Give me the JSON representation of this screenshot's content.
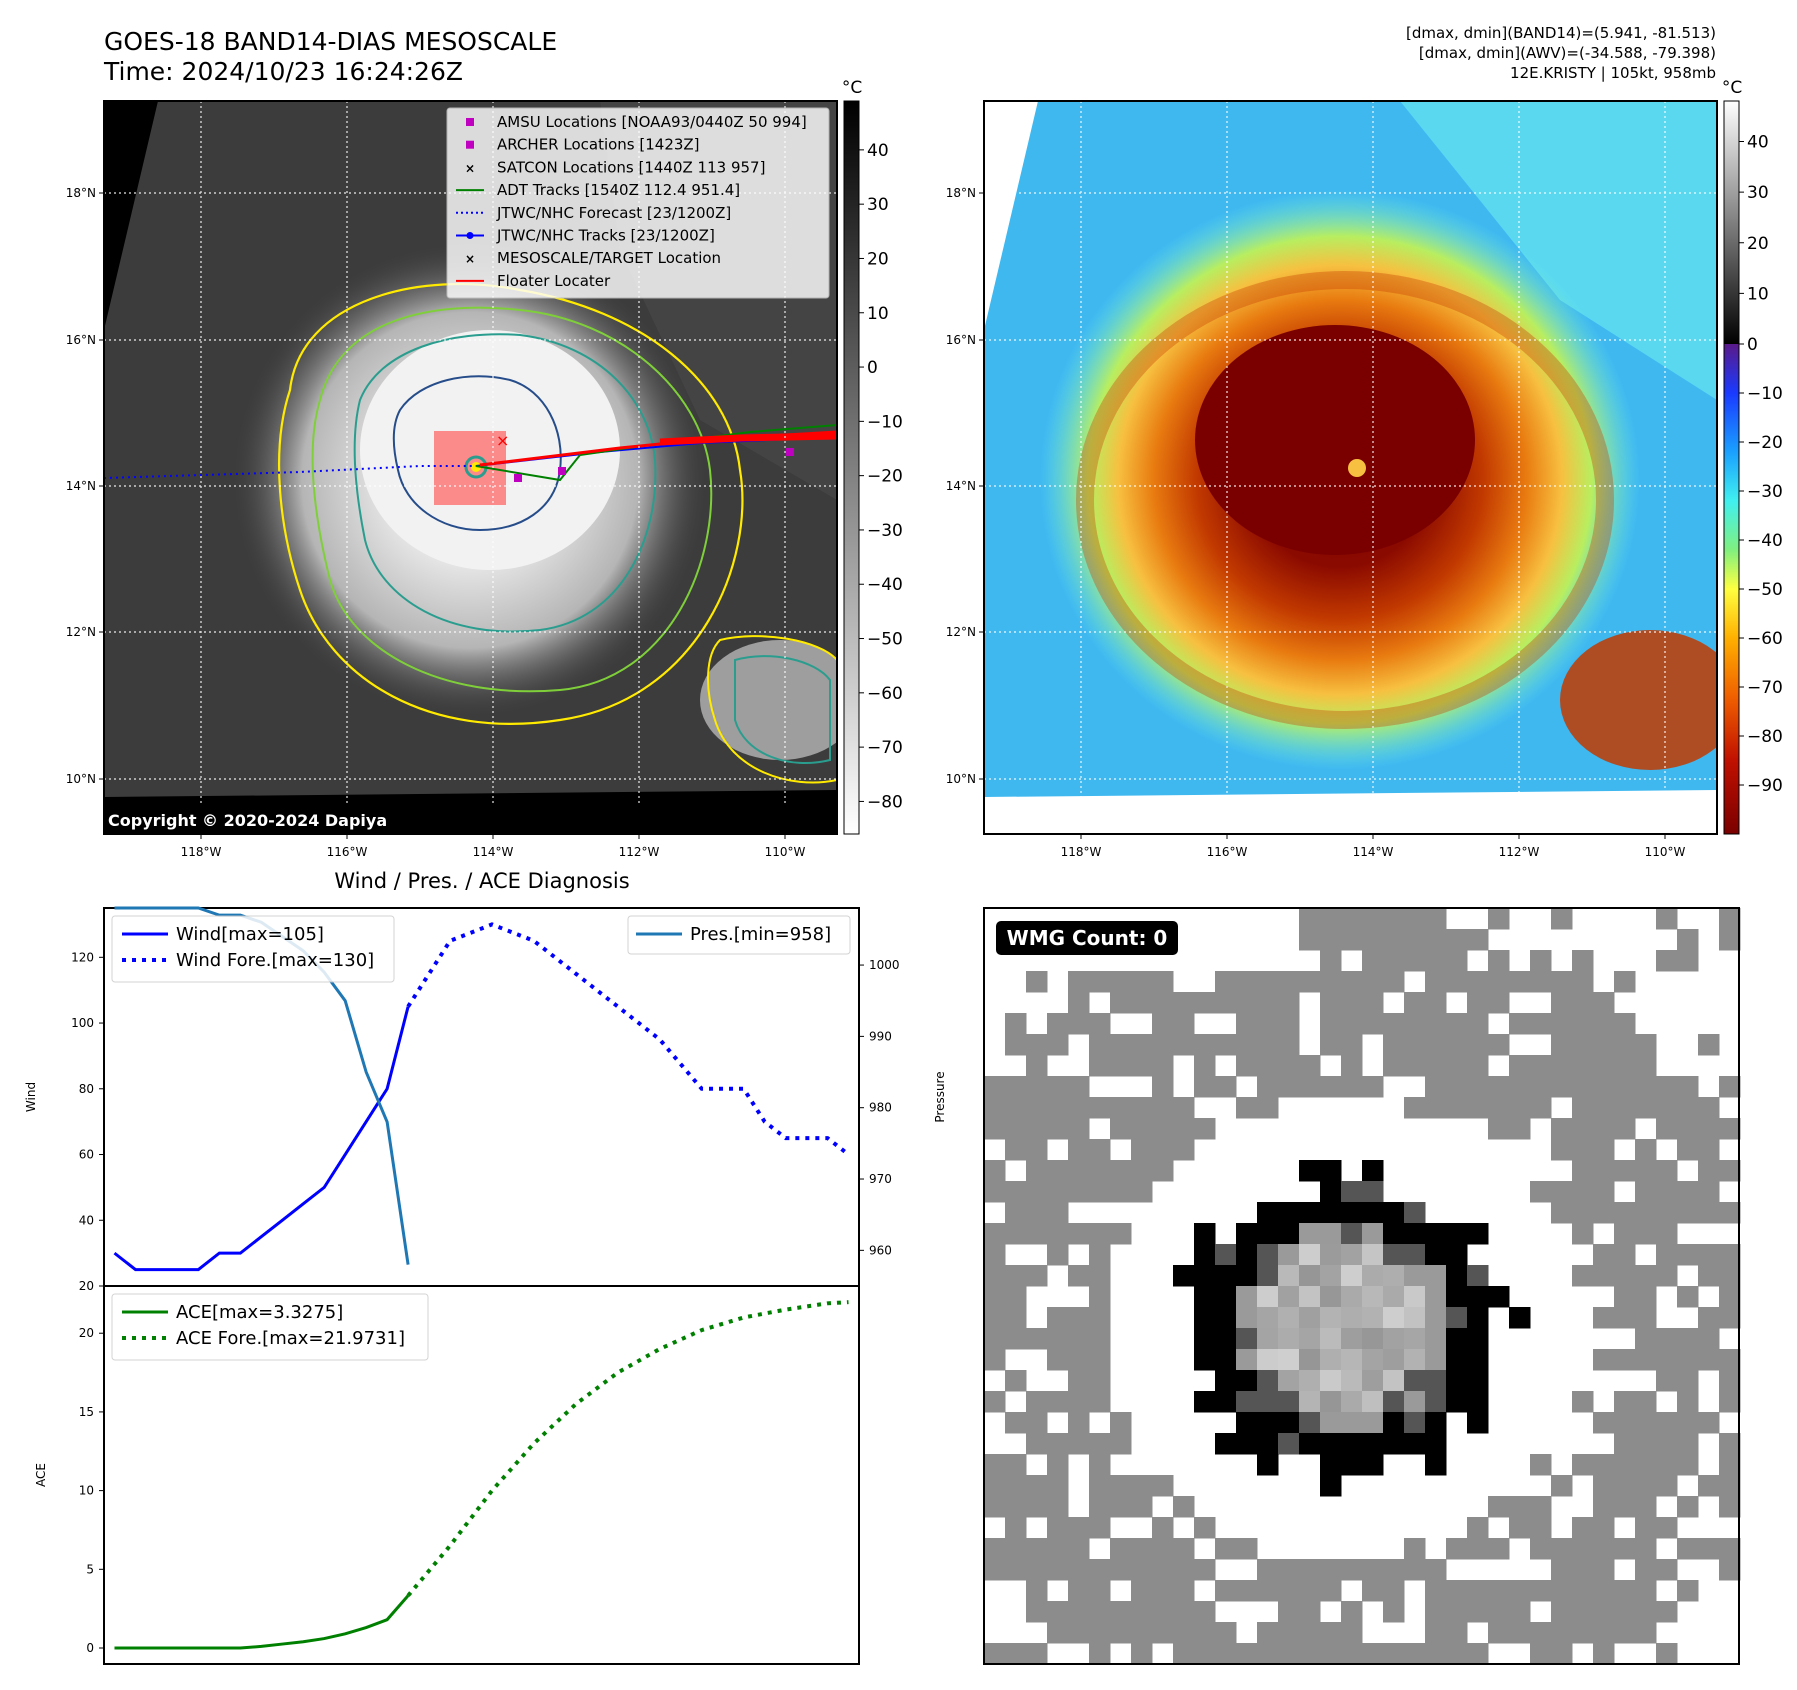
{
  "header": {
    "title_line1": "GOES-18 BAND14-DIAS MESOSCALE",
    "title_line2": "Time: 2024/10/23 16:24:26Z",
    "stats_line1": "[dmax, dmin](BAND14)=(5.941, -81.513)",
    "stats_line2": "[dmax, dmin](AWV)=(-34.588, -79.398)",
    "stats_line3": "12E.KRISTY | 105kt, 958mb"
  },
  "map": {
    "lon_labels": [
      "118°W",
      "116°W",
      "114°W",
      "112°W",
      "110°W"
    ],
    "lat_labels": [
      "18°N",
      "16°N",
      "14°N",
      "12°N",
      "10°N"
    ],
    "copyright": "Copyright © 2020-2024 Dapiya",
    "legend": [
      {
        "label": "AMSU Locations [NOAA93/0440Z 50 994]",
        "color": "#c000c0",
        "marker": "square"
      },
      {
        "label": "ARCHER Locations [1423Z]",
        "color": "#c000c0",
        "marker": "square"
      },
      {
        "label": "SATCON Locations [1440Z 113 957]",
        "color": "#20b2aa",
        "marker": "x"
      },
      {
        "label": "ADT Tracks [1540Z 112.4 951.4]",
        "color": "#008000",
        "marker": "line"
      },
      {
        "label": "JTWC/NHC Forecast [23/1200Z]",
        "color": "#0000ff",
        "marker": "dotted"
      },
      {
        "label": "JTWC/NHC Tracks [23/1200Z]",
        "color": "#0000ff",
        "marker": "line-dot"
      },
      {
        "label": "MESOSCALE/TARGET Location",
        "color": "#ff0000",
        "marker": "x"
      },
      {
        "label": "Floater Locater",
        "color": "#ff0000",
        "marker": "line"
      }
    ],
    "colorbar_unit": "°C",
    "colorbar_ticks_gray": [
      "40",
      "30",
      "20",
      "10",
      "0",
      "−10",
      "−20",
      "−30",
      "−40",
      "−50",
      "−60",
      "−70",
      "−80"
    ],
    "colorbar_ticks_color": [
      "40",
      "30",
      "20",
      "10",
      "0",
      "−10",
      "−20",
      "−30",
      "−40",
      "−50",
      "−60",
      "−70",
      "−80",
      "−90"
    ]
  },
  "wmg": {
    "label": "WMG Count: 0"
  },
  "chart_data": [
    {
      "type": "line",
      "title": "Wind / Pres. / ACE Diagnosis",
      "ylabel": "Wind",
      "y2label": "Pressure",
      "ylim": [
        20,
        135
      ],
      "y2lim": [
        955,
        1008
      ],
      "yticks": [
        20,
        40,
        60,
        80,
        100,
        120
      ],
      "y2ticks": [
        960,
        970,
        980,
        990,
        1000
      ],
      "series": [
        {
          "name": "Wind[max=105]",
          "style": "solid",
          "color": "#0000ff",
          "axis": "left",
          "x": [
            0,
            1,
            2,
            3,
            4,
            5,
            6,
            7,
            8,
            9,
            10,
            11,
            12,
            13,
            14
          ],
          "values": [
            30,
            25,
            25,
            25,
            25,
            30,
            30,
            35,
            40,
            45,
            50,
            60,
            70,
            80,
            105
          ]
        },
        {
          "name": "Wind Fore.[max=130]",
          "style": "dotted",
          "color": "#0000ff",
          "axis": "left",
          "x": [
            14,
            16,
            18,
            20,
            22,
            24,
            26,
            28,
            29,
            30,
            31,
            32,
            33,
            34,
            35
          ],
          "values": [
            105,
            125,
            130,
            125,
            115,
            105,
            95,
            80,
            80,
            80,
            70,
            65,
            65,
            65,
            60
          ]
        },
        {
          "name": "Pres.[min=958]",
          "style": "solid",
          "color": "#1f77b4",
          "axis": "right",
          "x": [
            0,
            1,
            2,
            3,
            4,
            5,
            6,
            7,
            8,
            9,
            10,
            11,
            12,
            13,
            14
          ],
          "values": [
            1008,
            1008,
            1008,
            1008,
            1008,
            1007,
            1007,
            1006,
            1004,
            1002,
            999,
            995,
            985,
            978,
            958
          ]
        }
      ]
    },
    {
      "type": "line",
      "ylabel": "ACE",
      "ylim": [
        -0.5,
        23
      ],
      "yticks": [
        0,
        5,
        10,
        15,
        20
      ],
      "series": [
        {
          "name": "ACE[max=3.3275]",
          "style": "solid",
          "color": "#008000",
          "x": [
            0,
            1,
            2,
            3,
            4,
            5,
            6,
            7,
            8,
            9,
            10,
            11,
            12,
            13,
            14
          ],
          "values": [
            0,
            0,
            0,
            0,
            0,
            0,
            0,
            0.1,
            0.25,
            0.4,
            0.6,
            0.9,
            1.3,
            1.8,
            3.3275
          ]
        },
        {
          "name": "ACE Fore.[max=21.9731]",
          "style": "dotted",
          "color": "#008000",
          "x": [
            14,
            16,
            18,
            20,
            22,
            24,
            26,
            28,
            30,
            32,
            34,
            35
          ],
          "values": [
            3.3275,
            6.5,
            10.0,
            13.0,
            15.5,
            17.5,
            19.0,
            20.2,
            21.0,
            21.5,
            21.9,
            21.9731
          ]
        }
      ]
    }
  ]
}
